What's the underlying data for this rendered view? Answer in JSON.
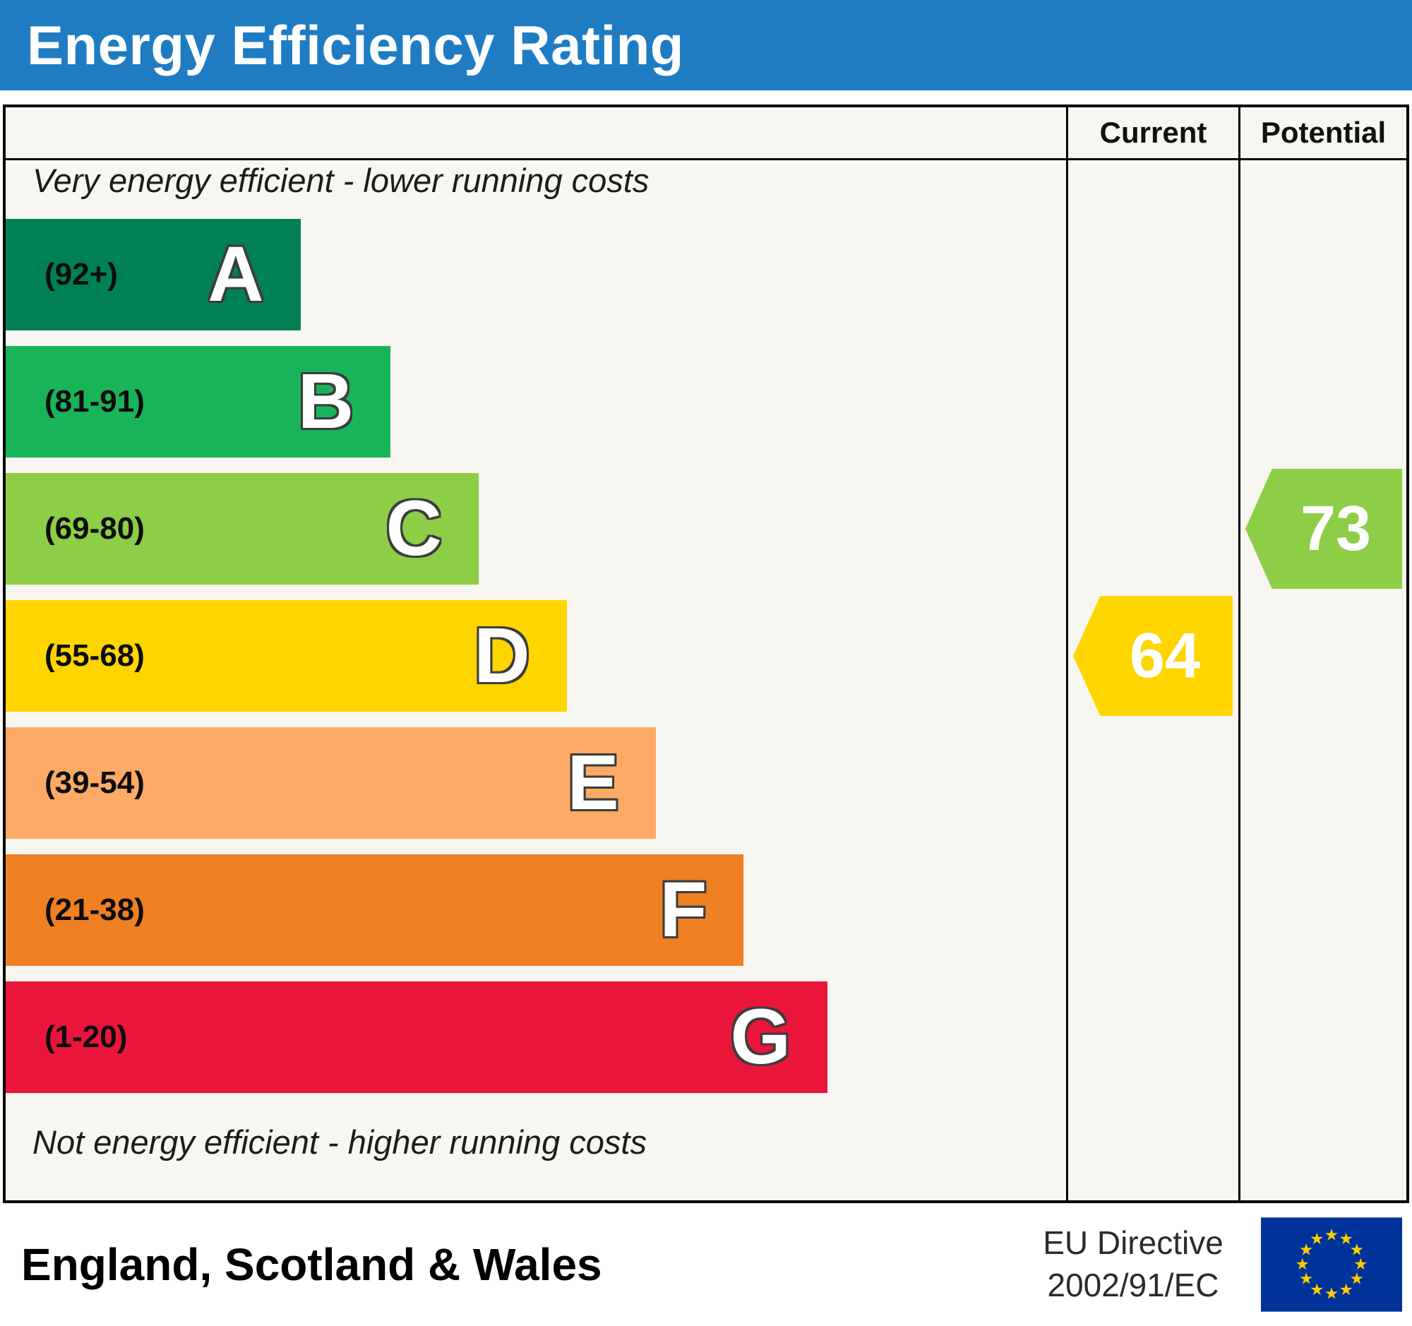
{
  "header": {
    "title": "Energy Efficiency Rating",
    "background": "#1f7cc2"
  },
  "columns": {
    "current": "Current",
    "potential": "Potential"
  },
  "captions": {
    "top": "Very energy efficient - lower running costs",
    "bottom": "Not energy efficient - higher running costs"
  },
  "chart_data": {
    "type": "bar",
    "title": "Energy Efficiency Rating",
    "scale": "SAP rating 1-100, banded A (best) to G (worst)",
    "bands": [
      {
        "letter": "A",
        "range": "(92+)",
        "color": "#008054",
        "width_pct": 27.8
      },
      {
        "letter": "B",
        "range": "(81-91)",
        "color": "#19b459",
        "width_pct": 36.3
      },
      {
        "letter": "C",
        "range": "(69-80)",
        "color": "#8dce46",
        "width_pct": 44.6
      },
      {
        "letter": "D",
        "range": "(55-68)",
        "color": "#ffd500",
        "width_pct": 52.9
      },
      {
        "letter": "E",
        "range": "(39-54)",
        "color": "#fcaa65",
        "width_pct": 61.3
      },
      {
        "letter": "F",
        "range": "(21-38)",
        "color": "#ef8023",
        "width_pct": 69.6
      },
      {
        "letter": "G",
        "range": "(1-20)",
        "color": "#e9153b",
        "width_pct": 77.5
      }
    ],
    "ratings": {
      "current": {
        "value": 64,
        "band": "D",
        "color": "#ffd500"
      },
      "potential": {
        "value": 73,
        "band": "C",
        "color": "#8dce46"
      }
    }
  },
  "footer": {
    "region": "England, Scotland & Wales",
    "directive_line1": "EU Directive",
    "directive_line2": "2002/91/EC",
    "eu_flag": {
      "background": "#003399",
      "star_color": "#ffcc00",
      "stars": 12
    }
  }
}
